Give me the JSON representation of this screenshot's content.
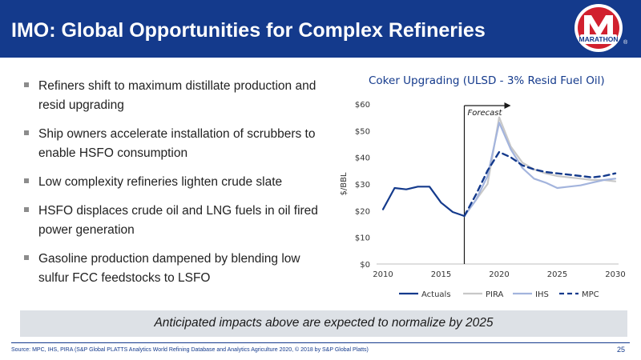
{
  "header": {
    "title": "IMO: Global Opportunities for Complex Refineries",
    "logo_text": "MARATHON",
    "registered_mark": "®"
  },
  "bullets": [
    "Refiners shift to maximum distillate production and resid upgrading",
    "Ship owners accelerate installation of scrubbers to enable HSFO consumption",
    "Low complexity refineries lighten crude slate",
    "HSFO displaces crude oil and LNG fuels in oil fired power generation",
    "Gasoline production dampened by blending low sulfur FCC feedstocks to LSFO"
  ],
  "impact_note": "Anticipated impacts above are expected to normalize by 2025",
  "footer": {
    "source": "Source: MPC, IHS, PIRA (S&P Global PLATTS Analytics World Refining Database and Analytics Agriculture 2020, © 2018 by S&P Global Platts)",
    "page_number": "25"
  },
  "colors": {
    "brand_blue": "#143a8c",
    "actuals": "#143a8c",
    "pira": "#c8c8c8",
    "ihs": "#a3b4dd",
    "mpc": "#143a8c"
  },
  "chart_data": {
    "type": "line",
    "title": "Coker Upgrading (ULSD - 3% Resid Fuel Oil)",
    "ylabel": "$/BBL",
    "xlabel": "",
    "xlim": [
      2010,
      2030
    ],
    "ylim": [
      0,
      60
    ],
    "x_ticks": [
      2010,
      2015,
      2020,
      2025,
      2030
    ],
    "y_ticks": [
      0,
      10,
      20,
      30,
      40,
      50,
      60
    ],
    "y_tick_labels": [
      "$0",
      "$10",
      "$20",
      "$30",
      "$40",
      "$50",
      "$60"
    ],
    "grid": false,
    "legend_position": "bottom",
    "annotations": [
      {
        "text": "Forecast",
        "x": 2017
      }
    ],
    "series": [
      {
        "name": "Actuals",
        "style": "solid",
        "color": "#143a8c",
        "x": [
          2010,
          2011,
          2012,
          2013,
          2014,
          2015,
          2016,
          2017
        ],
        "y": [
          20.5,
          28.5,
          28,
          29,
          29,
          23,
          19.5,
          18
        ]
      },
      {
        "name": "PIRA",
        "style": "solid",
        "color": "#c8c8c8",
        "x": [
          2017,
          2018,
          2019,
          2020,
          2021,
          2022,
          2023,
          2024,
          2025,
          2026,
          2027,
          2028,
          2029,
          2030
        ],
        "y": [
          18,
          24,
          30,
          55,
          44,
          38,
          35.5,
          34,
          33,
          32.5,
          32,
          31.5,
          31.5,
          31
        ]
      },
      {
        "name": "IHS",
        "style": "solid",
        "color": "#a3b4dd",
        "x": [
          2017,
          2018,
          2019,
          2020,
          2021,
          2022,
          2023,
          2024,
          2025,
          2026,
          2027,
          2028,
          2029,
          2030
        ],
        "y": [
          18,
          24,
          33,
          53,
          43,
          36,
          32,
          30.5,
          28.5,
          29,
          29.5,
          30.5,
          31.5,
          32
        ]
      },
      {
        "name": "MPC",
        "style": "dashed",
        "color": "#143a8c",
        "x": [
          2017,
          2018,
          2019,
          2020,
          2021,
          2022,
          2023,
          2024,
          2025,
          2026,
          2027,
          2028,
          2029,
          2030
        ],
        "y": [
          18,
          26,
          35,
          42,
          40,
          37,
          35.5,
          34.5,
          34,
          33.5,
          33,
          32.5,
          33,
          34
        ]
      }
    ]
  }
}
